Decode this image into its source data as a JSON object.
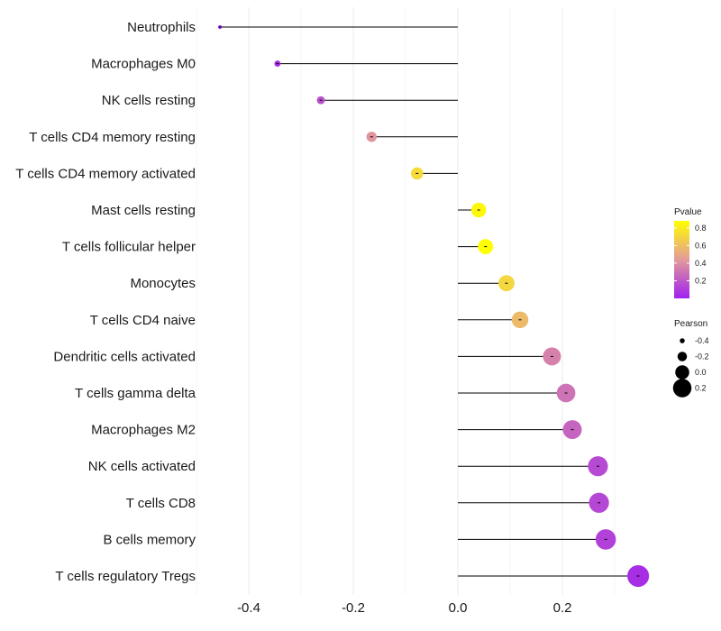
{
  "chart_data": {
    "type": "lollipop",
    "categories": [
      "Neutrophils",
      "Macrophages M0",
      "NK cells resting",
      "T cells CD4 memory resting",
      "T cells CD4 memory activated",
      "Mast cells resting",
      "T cells follicular helper",
      "Monocytes",
      "T cells CD4 naive",
      "Dendritic cells activated",
      "T cells gamma delta",
      "Macrophages M2",
      "NK cells activated",
      "T cells CD8",
      "B cells memory",
      "T cells regulatory  Tregs "
    ],
    "values": [
      -0.455,
      -0.345,
      -0.262,
      -0.165,
      -0.078,
      0.04,
      0.053,
      0.093,
      0.119,
      0.18,
      0.207,
      0.219,
      0.268,
      0.27,
      0.283,
      0.345
    ],
    "pvalues": [
      0.0,
      0.05,
      0.18,
      0.42,
      0.72,
      0.85,
      0.88,
      0.7,
      0.58,
      0.35,
      0.3,
      0.25,
      0.15,
      0.14,
      0.12,
      0.05
    ],
    "xlim": [
      -0.5,
      0.37
    ],
    "xticks": [
      -0.4,
      -0.2,
      0.0,
      0.2
    ],
    "xtick_labels": [
      "-0.4",
      "-0.2",
      "0.0",
      "0.2"
    ],
    "color_legend": {
      "title": "Pvalue",
      "ticks": [
        0.8,
        0.6,
        0.4,
        0.2
      ],
      "tick_labels": [
        "0.8",
        "0.6",
        "0.4",
        "0.2"
      ],
      "low_color": "#a020f0",
      "mid_color": "#e39a9a",
      "high_color": "#ffff00",
      "range": [
        0.0,
        0.88
      ]
    },
    "size_legend": {
      "title": "Pearson",
      "values": [
        -0.4,
        -0.2,
        0.0,
        0.2
      ],
      "labels": [
        "-0.4",
        "-0.2",
        "0.0",
        "0.2"
      ]
    },
    "title": "",
    "xlabel": "",
    "ylabel": ""
  }
}
